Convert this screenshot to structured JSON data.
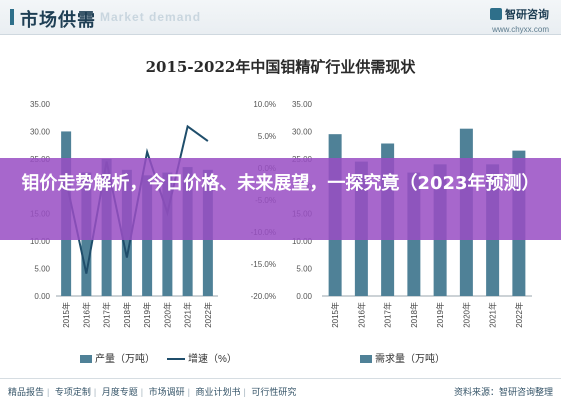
{
  "header": {
    "section_title": "市场供需",
    "watermark": "Market demand",
    "brand_name": "智研咨询",
    "brand_url": "www.chyxx.com"
  },
  "chart_title": "2015-2022年中国钼精矿行业供需现状",
  "overlay": {
    "headline": "钼价走势解析，今日价格、未来展望，一探究竟（2023年预测）"
  },
  "footer": {
    "left_items": [
      "精品报告",
      "专项定制",
      "月度专题",
      "市场调研",
      "商业计划书",
      "可行性研究"
    ],
    "right": "资料来源：智研咨询整理"
  },
  "colors": {
    "bar": "#4f8197",
    "line": "#1f4e6b",
    "overlay": "#984ec4"
  },
  "chart_data": [
    {
      "type": "bar",
      "categories": [
        "2015年",
        "2016年",
        "2017年",
        "2018年",
        "2019年",
        "2020年",
        "2021年",
        "2022年"
      ],
      "series": [
        {
          "name": "产量（万吨）",
          "type": "bar",
          "axis": "left",
          "values": [
            30.0,
            22.5,
            25.0,
            23.0,
            22.0,
            22.5,
            23.5,
            23.0
          ]
        },
        {
          "name": "增速（%）",
          "type": "line",
          "axis": "right",
          "values": [
            -2.0,
            -16.5,
            1.0,
            -14.0,
            2.5,
            -7.0,
            6.5,
            4.2
          ]
        }
      ],
      "y_left": {
        "ticks": [
          "0.00",
          "5.00",
          "10.00",
          "15.00",
          "20.00",
          "25.00",
          "30.00",
          "35.00"
        ],
        "ylim": [
          0,
          35
        ]
      },
      "y_right": {
        "ticks": [
          "-20.0%",
          "-15.0%",
          "-10.0%",
          "-5.0%",
          "0.0%",
          "5.0%",
          "10.0%"
        ],
        "ylim": [
          -20,
          10
        ]
      },
      "legend": "bottom"
    },
    {
      "type": "bar",
      "categories": [
        "2015年",
        "2016年",
        "2017年",
        "2018年",
        "2019年",
        "2020年",
        "2021年",
        "2022年"
      ],
      "series": [
        {
          "name": "需求量（万吨）",
          "values": [
            29.5,
            24.5,
            27.8,
            22.5,
            24.0,
            30.5,
            24.0,
            26.5
          ]
        }
      ],
      "y_left": {
        "ticks": [
          "0.00",
          "5.00",
          "10.00",
          "15.00",
          "20.00",
          "25.00",
          "30.00",
          "35.00"
        ],
        "ylim": [
          0,
          35
        ]
      },
      "legend": "bottom"
    }
  ]
}
